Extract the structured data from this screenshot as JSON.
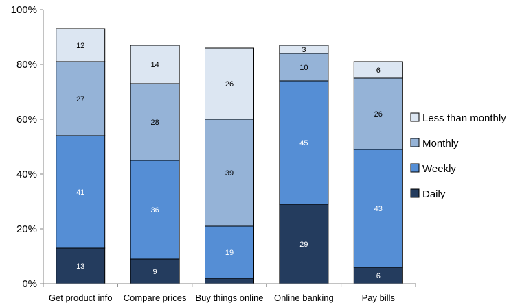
{
  "chart_data": {
    "type": "bar",
    "stacked": true,
    "title": "",
    "xlabel": "",
    "ylabel": "",
    "ylim": [
      0,
      100
    ],
    "y_ticks": [
      "0%",
      "20%",
      "40%",
      "60%",
      "80%",
      "100%"
    ],
    "grid": false,
    "legend_position": "right",
    "categories": [
      "Get product info",
      "Compare prices",
      "Buy things online",
      "Online banking",
      "Pay bills"
    ],
    "series": [
      {
        "name": "Daily",
        "color": "#243c5e",
        "label_color": "#ffffff",
        "values": [
          13,
          9,
          2,
          29,
          6
        ],
        "labels": [
          "13",
          "9",
          "",
          "29",
          "6"
        ]
      },
      {
        "name": "Weekly",
        "color": "#558ed5",
        "label_color": "#ffffff",
        "values": [
          41,
          36,
          19,
          45,
          43
        ],
        "labels": [
          "41",
          "36",
          "19",
          "45",
          "43"
        ]
      },
      {
        "name": "Monthly",
        "color": "#95b3d7",
        "label_color": "#000000",
        "values": [
          27,
          28,
          39,
          10,
          26
        ],
        "labels": [
          "27",
          "28",
          "39",
          "10",
          "26"
        ]
      },
      {
        "name": "Less than monthly",
        "color": "#dce6f2",
        "label_color": "#000000",
        "values": [
          12,
          14,
          26,
          3,
          6
        ],
        "labels": [
          "12",
          "14",
          "26",
          "3",
          "6"
        ]
      }
    ]
  }
}
